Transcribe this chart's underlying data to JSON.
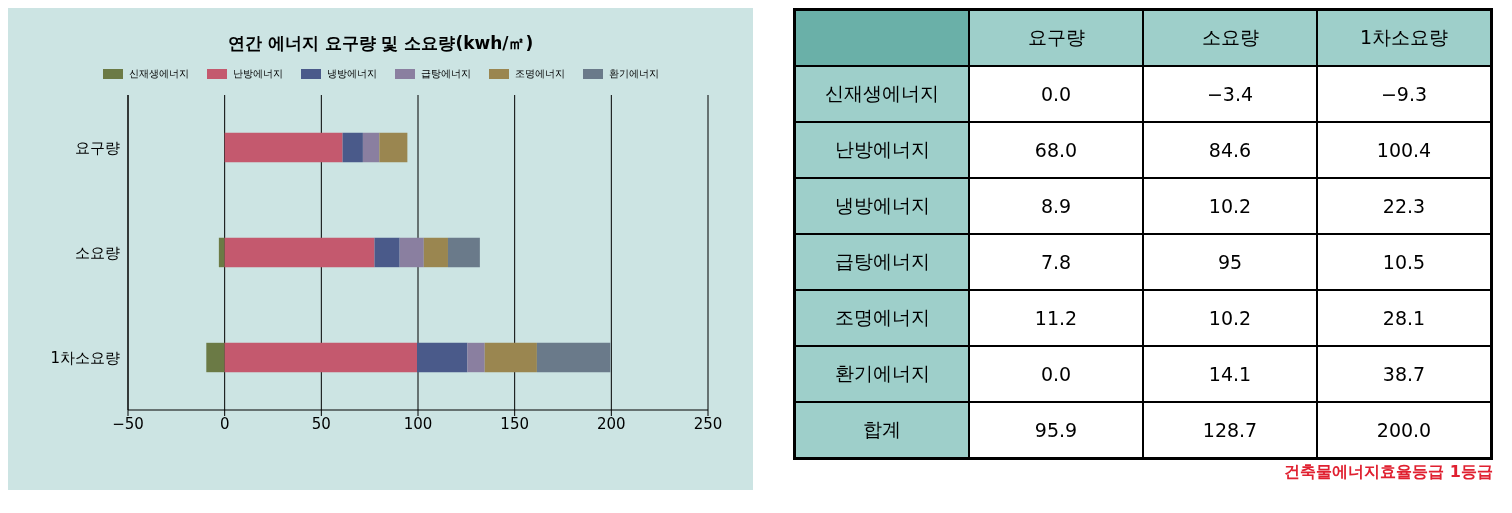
{
  "chart_data": [
    {
      "type": "bar",
      "orientation": "horizontal",
      "stacked": true,
      "title": "연간 에너지 요구량 및 소요량(kwh/㎡)",
      "categories": [
        "요구량",
        "소요량",
        "1차소요량"
      ],
      "series": [
        {
          "name": "신재생에너지",
          "color": "#6b7a45",
          "values": [
            0,
            -3,
            -9.5
          ]
        },
        {
          "name": "난방에너지",
          "color": "#c4596e",
          "values": [
            61,
            77.5,
            99.5
          ]
        },
        {
          "name": "냉방에너지",
          "color": "#4a5a8a",
          "values": [
            10.5,
            13,
            26
          ]
        },
        {
          "name": "급탕에너지",
          "color": "#8a7fa0",
          "values": [
            8.5,
            12.5,
            9
          ]
        },
        {
          "name": "조명에너지",
          "color": "#9a8650",
          "values": [
            14.5,
            12.5,
            27
          ]
        },
        {
          "name": "환기에너지",
          "color": "#6a7a8a",
          "values": [
            0,
            16.5,
            38
          ]
        }
      ],
      "xlim": [
        -50,
        250
      ],
      "xticks": [
        -50,
        0,
        50,
        100,
        150,
        200,
        250
      ],
      "grid": "x",
      "legend": "top"
    },
    {
      "type": "other",
      "categories": [
        "요구량",
        "소요량",
        "1차소요량"
      ],
      "y_categories": [
        "신재생에너지",
        "난방에너지",
        "냉방에너지",
        "급탕에너지",
        "조명에너지",
        "환기에너지",
        "합계"
      ],
      "cell_labels": [
        [
          "0.0",
          "−3.4",
          "−9.3"
        ],
        [
          "68.0",
          "84.6",
          "100.4"
        ],
        [
          "8.9",
          "10.2",
          "22.3"
        ],
        [
          "7.8",
          "95",
          "10.5"
        ],
        [
          "11.2",
          "10.2",
          "28.1"
        ],
        [
          "0.0",
          "14.1",
          "38.7"
        ],
        [
          "95.9",
          "128.7",
          "200.0"
        ]
      ],
      "annotations": [
        "건축물에너지효율등급 1등급"
      ]
    }
  ]
}
